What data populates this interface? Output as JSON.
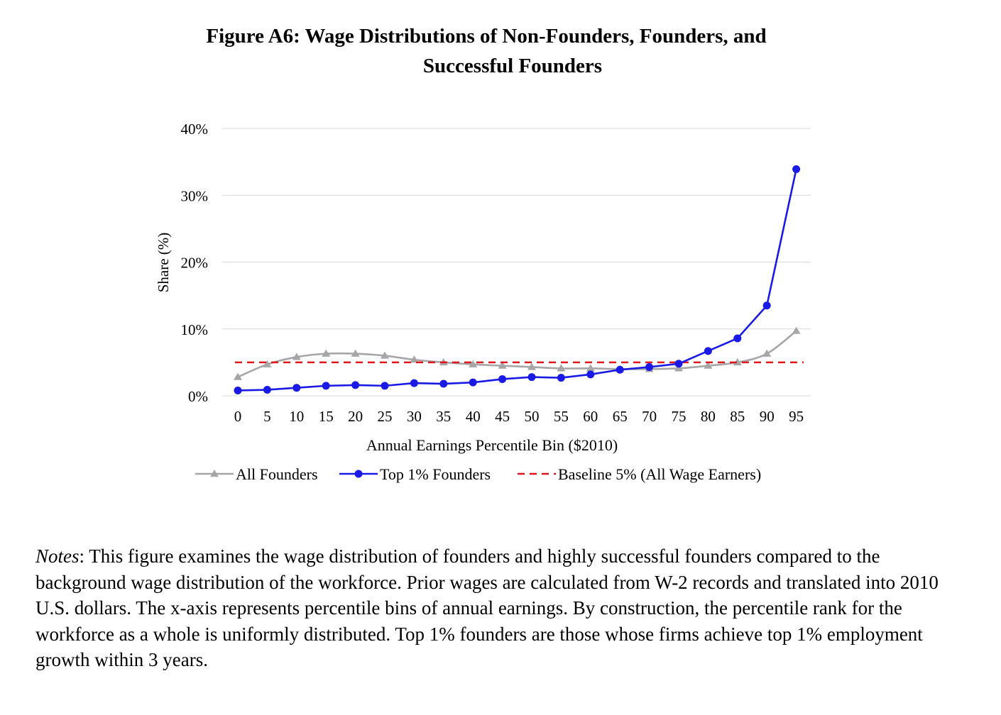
{
  "figure": {
    "title_line1": "Figure A6: Wage Distributions of Non-Founders, Founders, and",
    "title_line2": "Successful Founders"
  },
  "chart_data": {
    "type": "line",
    "title": "Figure A6: Wage Distributions of Non-Founders, Founders, and Successful Founders",
    "xlabel": "Annual Earnings Percentile Bin ($2010)",
    "ylabel": "Share (%)",
    "x": [
      0,
      5,
      10,
      15,
      20,
      25,
      30,
      35,
      40,
      45,
      50,
      55,
      60,
      65,
      70,
      75,
      80,
      85,
      90,
      95
    ],
    "ylim": [
      0,
      40
    ],
    "yticks": [
      0,
      10,
      20,
      30,
      40
    ],
    "ytick_labels": [
      "0%",
      "10%",
      "20%",
      "30%",
      "40%"
    ],
    "grid": true,
    "legend_position": "bottom",
    "series": [
      {
        "name": "All Founders",
        "color": "#a6a6a6",
        "marker": "triangle",
        "style": "solid",
        "values": [
          2.8,
          4.7,
          5.8,
          6.3,
          6.3,
          6.0,
          5.4,
          5.0,
          4.7,
          4.5,
          4.3,
          4.1,
          4.1,
          4.0,
          4.0,
          4.1,
          4.5,
          5.0,
          6.3,
          9.7
        ]
      },
      {
        "name": "Top 1% Founders",
        "color": "#1a1ae6",
        "marker": "circle",
        "style": "solid",
        "values": [
          0.8,
          0.9,
          1.2,
          1.5,
          1.6,
          1.5,
          1.9,
          1.8,
          2.0,
          2.5,
          2.8,
          2.7,
          3.2,
          3.9,
          4.3,
          4.8,
          6.7,
          8.6,
          13.5,
          33.9
        ]
      },
      {
        "name": "Baseline 5% (All Wage Earners)",
        "color": "#e0161b",
        "marker": "none",
        "style": "dashed",
        "values": [
          5,
          5,
          5,
          5,
          5,
          5,
          5,
          5,
          5,
          5,
          5,
          5,
          5,
          5,
          5,
          5,
          5,
          5,
          5,
          5
        ]
      }
    ]
  },
  "notes": {
    "label": "Notes",
    "text": ": This figure examines the wage distribution of founders and highly successful founders compared to the background wage distribution of the workforce.  Prior wages are calculated from W-2 records and translated into 2010 U.S. dollars.  The x-axis represents percentile bins of annual earnings.  By construction, the percentile rank for the workforce as a whole is uniformly distributed.  Top 1% founders are those whose firms achieve top 1% employment growth within 3 years."
  }
}
